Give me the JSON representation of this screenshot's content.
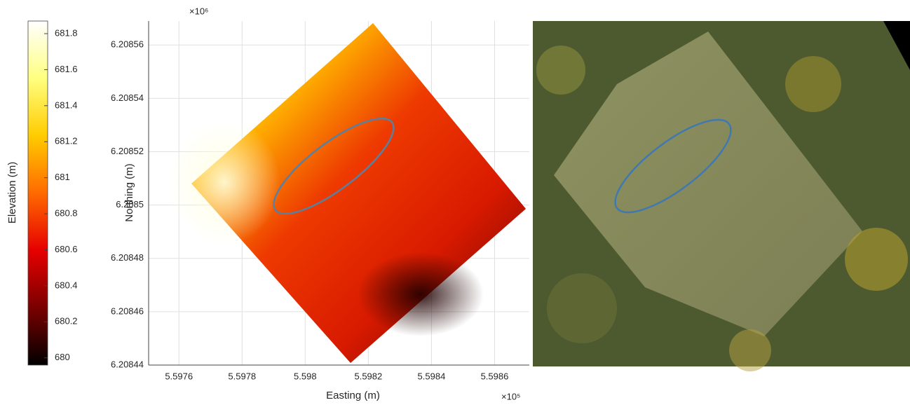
{
  "chart_data": [
    {
      "type": "colorbar",
      "label": "Elevation (m)",
      "colormap": "hot",
      "ylim": [
        679.96,
        681.87
      ],
      "yticks": [
        680,
        680.2,
        680.4,
        680.6,
        680.8,
        681,
        681.2,
        681.4,
        681.6,
        681.8
      ]
    },
    {
      "type": "heatmap",
      "x_label": "Easting (m)",
      "y_label": "Northing (m)",
      "x_multiplier": "×10⁵",
      "y_multiplier": "×10⁶",
      "grid": true,
      "xlim": [
        559750.4,
        559871
      ],
      "xticks": [
        {
          "value": 559760,
          "label": "5.5976"
        },
        {
          "value": 559780,
          "label": "5.5978"
        },
        {
          "value": 559800,
          "label": "5.598"
        },
        {
          "value": 559820,
          "label": "5.5982"
        },
        {
          "value": 559840,
          "label": "5.5984"
        },
        {
          "value": 559860,
          "label": "5.5986"
        }
      ],
      "ylim": [
        6208440,
        6208569
      ],
      "yticks": [
        {
          "value": 6208440,
          "label": "6.20844"
        },
        {
          "value": 6208460,
          "label": "6.20846"
        },
        {
          "value": 6208480,
          "label": "6.20848"
        },
        {
          "value": 6208500,
          "label": "6.2085"
        },
        {
          "value": 6208520,
          "label": "6.20852"
        },
        {
          "value": 6208540,
          "label": "6.20854"
        },
        {
          "value": 6208560,
          "label": "6.20856"
        }
      ]
    }
  ]
}
